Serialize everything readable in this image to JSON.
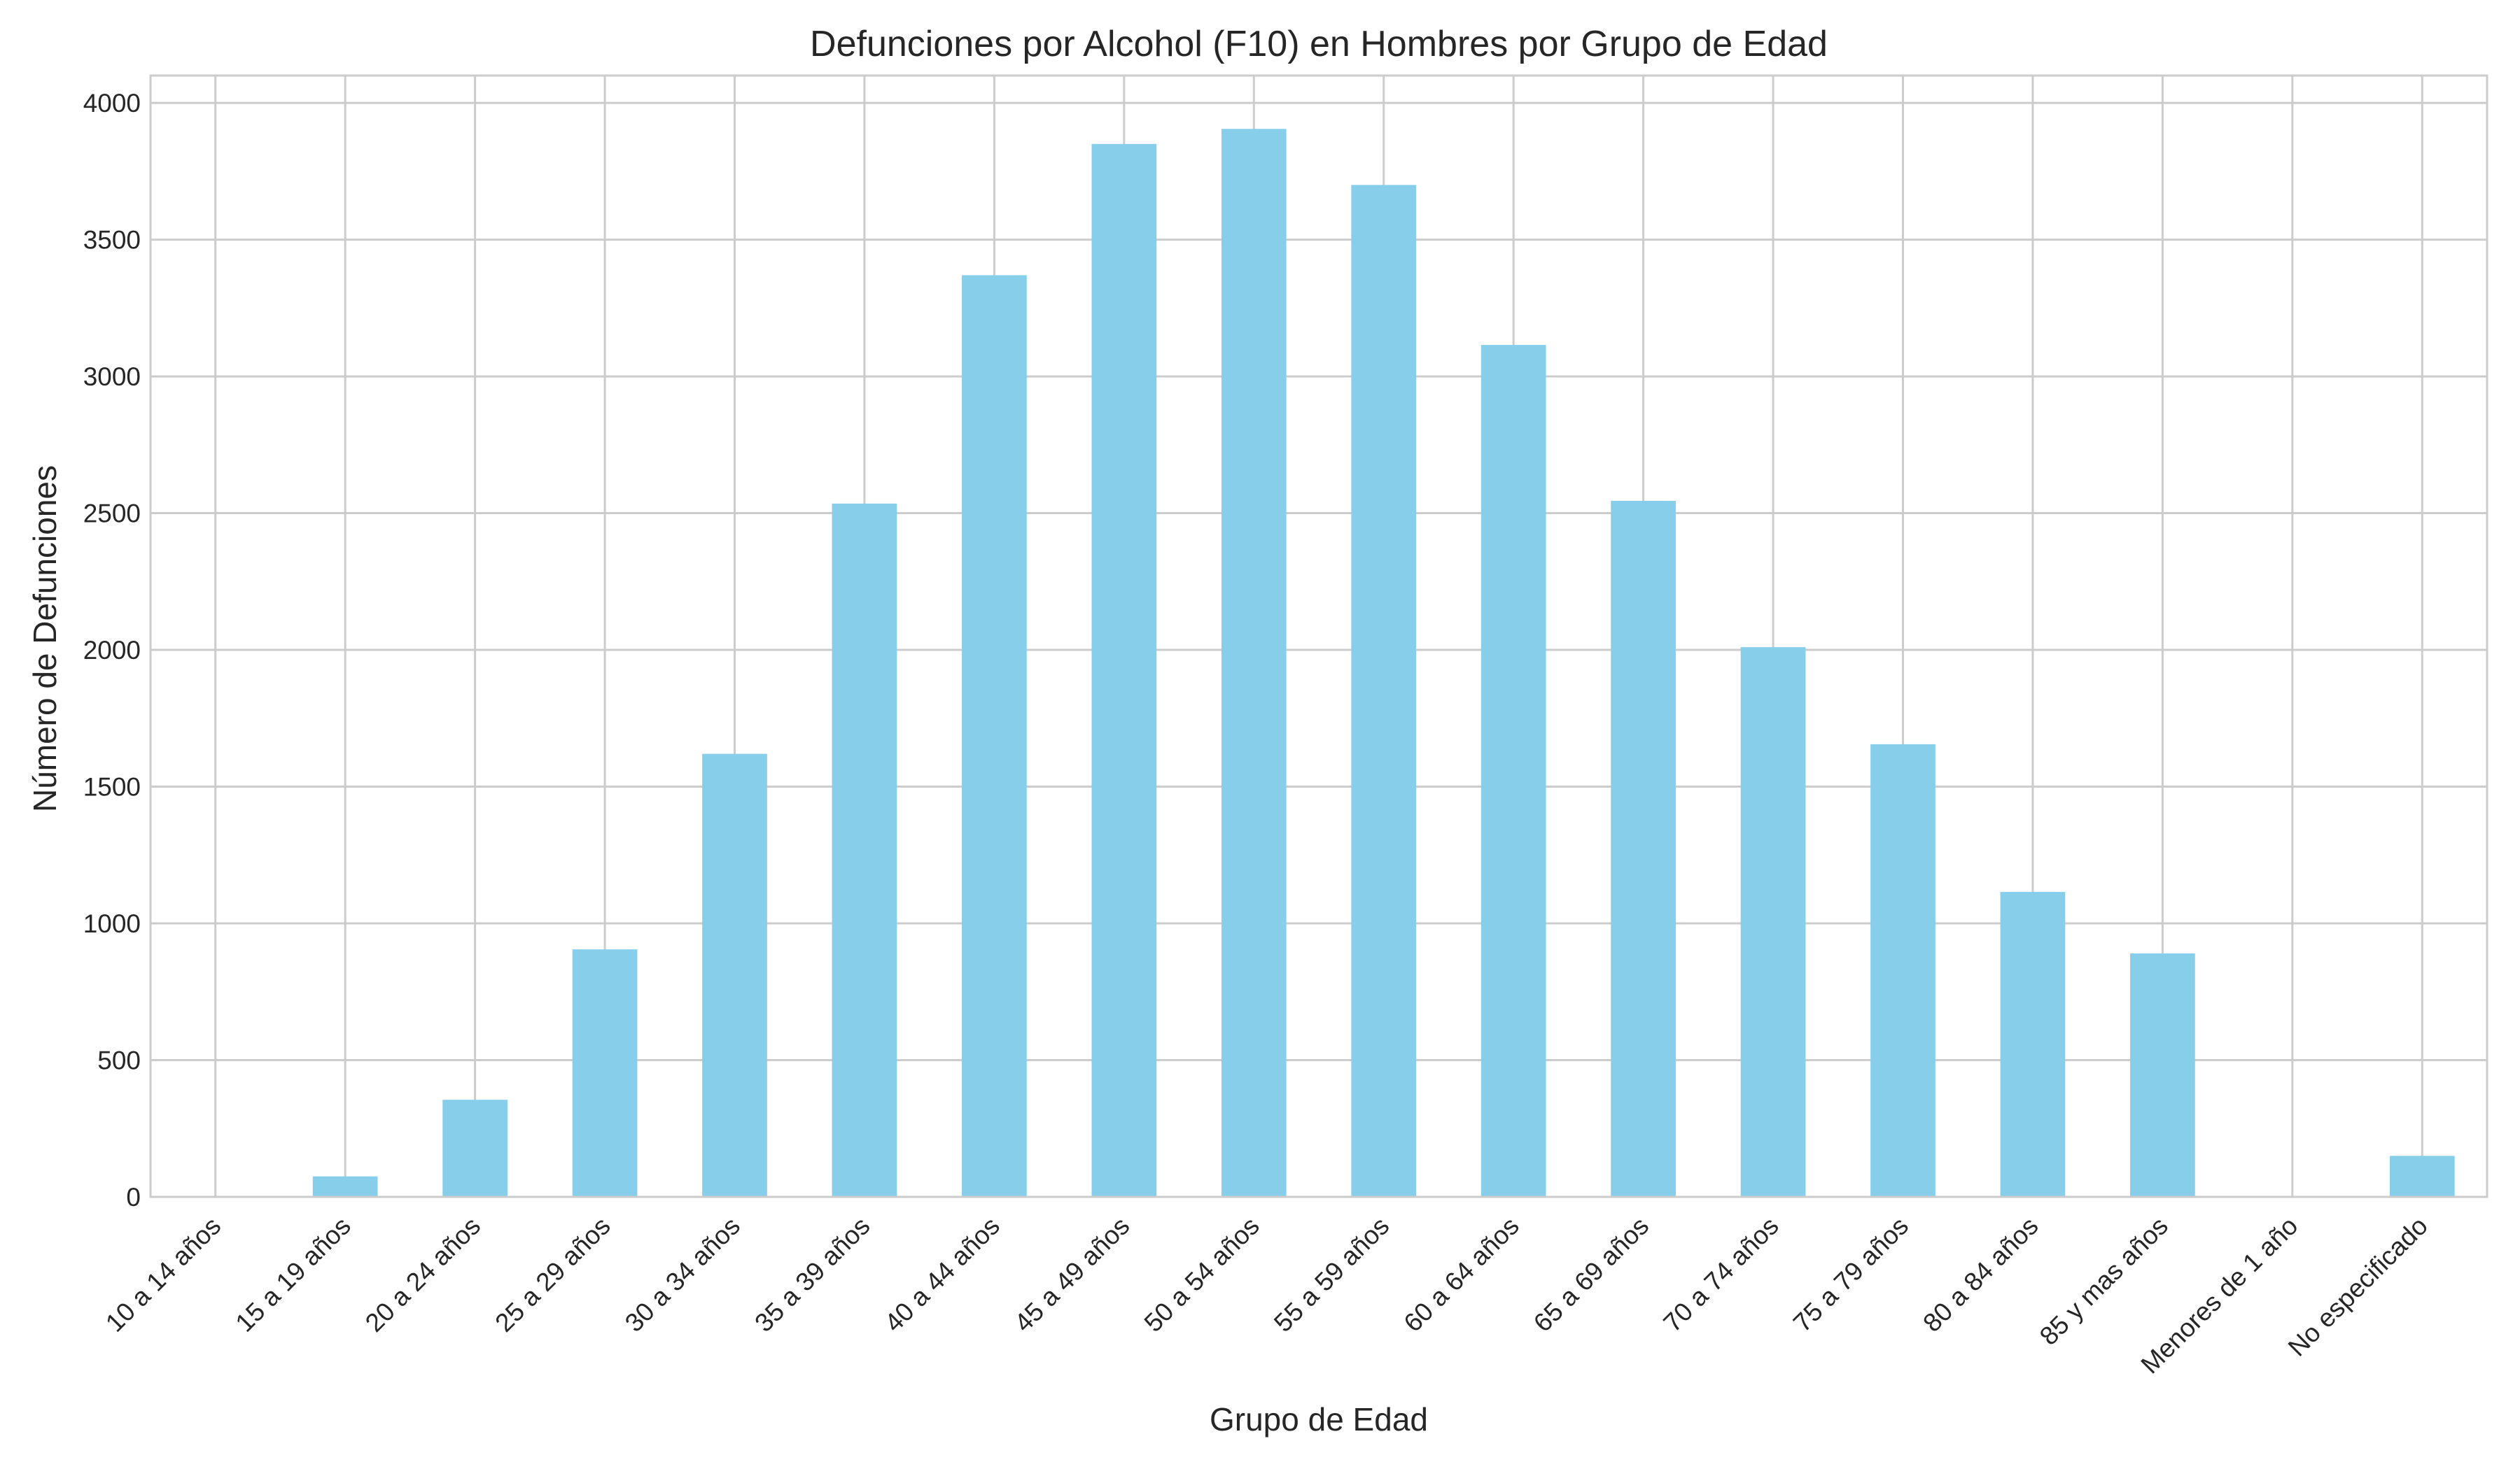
{
  "chart_data": {
    "type": "bar",
    "title": "Defunciones por Alcohol (F10) en Hombres por Grupo de Edad",
    "xlabel": "Grupo de Edad",
    "ylabel": "Número de Defunciones",
    "categories": [
      "10 a 14 años",
      "15 a 19 años",
      "20 a 24 años",
      "25 a 29 años",
      "30 a 34 años",
      "35 a 39 años",
      "40 a 44 años",
      "45 a 49 años",
      "50 a 54 años",
      "55 a 59 años",
      "60 a 64 años",
      "65 a 69 años",
      "70 a 74 años",
      "75 a 79 años",
      "80 a 84 años",
      "85 y mas años",
      "Menores de 1 año",
      "No especificado"
    ],
    "values": [
      1,
      75,
      355,
      905,
      1620,
      2535,
      3370,
      3850,
      3905,
      3700,
      3115,
      2545,
      2010,
      1655,
      1115,
      890,
      0,
      150
    ],
    "ylim": [
      0,
      4100
    ],
    "yticks": [
      0,
      500,
      1000,
      1500,
      2000,
      2500,
      3000,
      3500,
      4000
    ],
    "grid": true,
    "bar_color": "#87ceeb",
    "grid_color": "#cccccc",
    "text_color": "#262626"
  }
}
